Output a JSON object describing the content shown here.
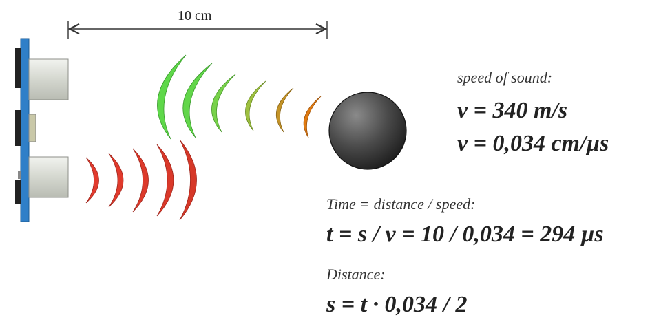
{
  "distance_label": "10 cm",
  "speed": {
    "caption": "speed of sound:",
    "formula_ms": "v = 340 m/s",
    "formula_cmus": "v = 0,034 cm/µs"
  },
  "time": {
    "caption": "Time = distance / speed:",
    "formula": "t = s / v = 10 / 0,034 = 294 µs"
  },
  "distance": {
    "caption": "Distance:",
    "formula": "s = t · 0,034 / 2"
  },
  "colors": {
    "board": "#2f7fc8",
    "transducer": "#d6d9d2",
    "outgoing_wave": "#e23b2e",
    "echo_near_object": "#e07a10",
    "echo_far": "#5fd84a",
    "object": "#4a4a4a"
  }
}
